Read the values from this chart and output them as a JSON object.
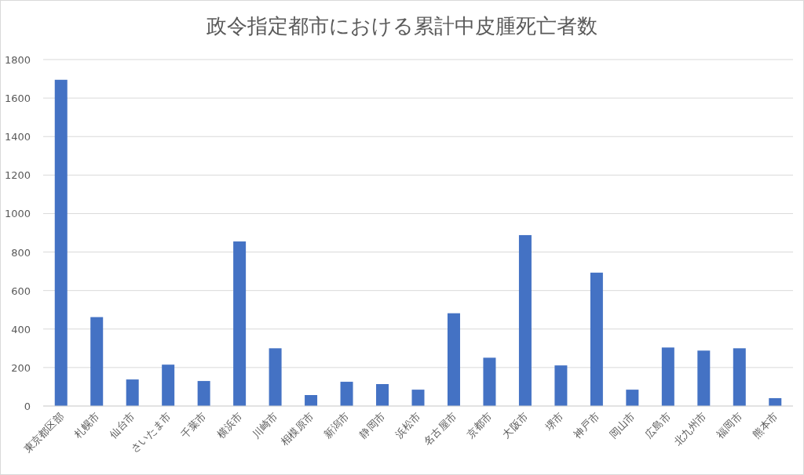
{
  "chart_data": {
    "type": "bar",
    "title": "政令指定都市における累計中皮腫死亡者数",
    "categories": [
      "東京都区部",
      "札幌市",
      "仙台市",
      "さいたま市",
      "千葉市",
      "横浜市",
      "川崎市",
      "相模原市",
      "新潟市",
      "静岡市",
      "浜松市",
      "名古屋市",
      "京都市",
      "大阪市",
      "堺市",
      "神戸市",
      "岡山市",
      "広島市",
      "北九州市",
      "福岡市",
      "熊本市"
    ],
    "values": [
      1695,
      462,
      138,
      215,
      130,
      855,
      300,
      57,
      126,
      114,
      85,
      482,
      251,
      888,
      211,
      693,
      85,
      304,
      288,
      300,
      41
    ],
    "color": "#4472c4",
    "ylim": [
      0,
      1800
    ],
    "yticks": [
      0,
      200,
      400,
      600,
      800,
      1000,
      1200,
      1400,
      1600,
      1800
    ],
    "grid": "y"
  }
}
